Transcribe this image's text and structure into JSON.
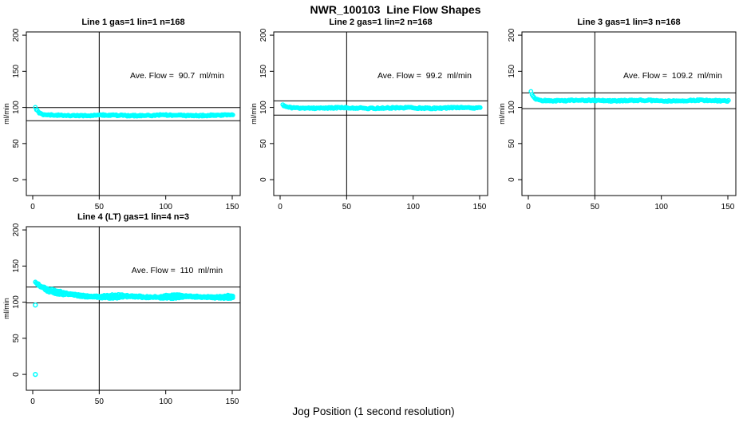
{
  "page": {
    "title": "NWR_100103  Line Flow Shapes",
    "xlabel": "Jog Position (1 second resolution)",
    "background_color": "#FFFFFF",
    "point_color": "#00FFFF",
    "axis_color": "#000000"
  },
  "chart_data": [
    {
      "type": "scatter",
      "title": "Line 1 gas=1 lin=1 n=168",
      "annotation": "Ave. Flow =  90.7  ml/min",
      "ave_flow_ml_min": 90.7,
      "n": 168,
      "ref_lines_ml_min": [
        99.8,
        81.6
      ],
      "crosshair_x": 50,
      "ylabel": "ml/min",
      "x_ticks": [
        0,
        50,
        100,
        150
      ],
      "y_ticks": [
        0,
        50,
        100,
        150,
        200
      ],
      "xlim": [
        -4.8,
        156
      ],
      "ylim": [
        -22,
        204.5
      ],
      "grid": false,
      "legend": null,
      "series": {
        "x_start": 2,
        "x_end": 151,
        "start_value": 100,
        "settle_value": 89,
        "decay_tau": 2.5,
        "noise": 0.9,
        "wiggle_amp": 0.4,
        "passes": 1,
        "outliers": []
      }
    },
    {
      "type": "scatter",
      "title": "Line 2 gas=1 lin=2 n=168",
      "annotation": "Ave. Flow =  99.2  ml/min",
      "ave_flow_ml_min": 99.2,
      "n": 168,
      "ref_lines_ml_min": [
        109.1,
        89.3
      ],
      "crosshair_x": 50,
      "ylabel": "ml/min",
      "x_ticks": [
        0,
        50,
        100,
        150
      ],
      "y_ticks": [
        0,
        50,
        100,
        150,
        200
      ],
      "xlim": [
        -4.8,
        156
      ],
      "ylim": [
        -22,
        204.5
      ],
      "grid": false,
      "legend": null,
      "series": {
        "x_start": 2,
        "x_end": 151,
        "start_value": 103.5,
        "settle_value": 99.2,
        "decay_tau": 2.0,
        "noise": 0.9,
        "wiggle_amp": 0.4,
        "passes": 1,
        "outliers": []
      }
    },
    {
      "type": "scatter",
      "title": "Line 3 gas=1 lin=3 n=168",
      "annotation": "Ave. Flow =  109.2  ml/min",
      "ave_flow_ml_min": 109.2,
      "n": 168,
      "ref_lines_ml_min": [
        120.1,
        98.3
      ],
      "crosshair_x": 50,
      "ylabel": "ml/min",
      "x_ticks": [
        0,
        50,
        100,
        150
      ],
      "y_ticks": [
        0,
        50,
        100,
        150,
        200
      ],
      "xlim": [
        -4.8,
        156
      ],
      "ylim": [
        -22,
        204.5
      ],
      "grid": false,
      "legend": null,
      "series": {
        "x_start": 2,
        "x_end": 151,
        "start_value": 122,
        "settle_value": 109.5,
        "decay_tau": 2.2,
        "noise": 0.9,
        "wiggle_amp": 0.4,
        "passes": 1,
        "outliers": []
      }
    },
    {
      "type": "scatter",
      "title": "Line 4 (LT) gas=1 lin=4 n=3",
      "annotation": "Ave. Flow =  110  ml/min",
      "ave_flow_ml_min": 110,
      "n": 3,
      "ref_lines_ml_min": [
        121,
        99
      ],
      "crosshair_x": 50,
      "ylabel": "ml/min",
      "x_ticks": [
        0,
        50,
        100,
        150
      ],
      "y_ticks": [
        0,
        50,
        100,
        150,
        200
      ],
      "xlim": [
        -4.8,
        156
      ],
      "ylim": [
        -22,
        204.5
      ],
      "grid": false,
      "legend": null,
      "series": {
        "x_start": 2,
        "x_end": 151,
        "start_value": 128,
        "settle_value": 107.5,
        "decay_tau": 13,
        "noise": 1.1,
        "wiggle_amp": 1.4,
        "passes": 2,
        "outliers": [
          [
            2,
            0
          ],
          [
            2,
            96
          ]
        ]
      }
    }
  ]
}
